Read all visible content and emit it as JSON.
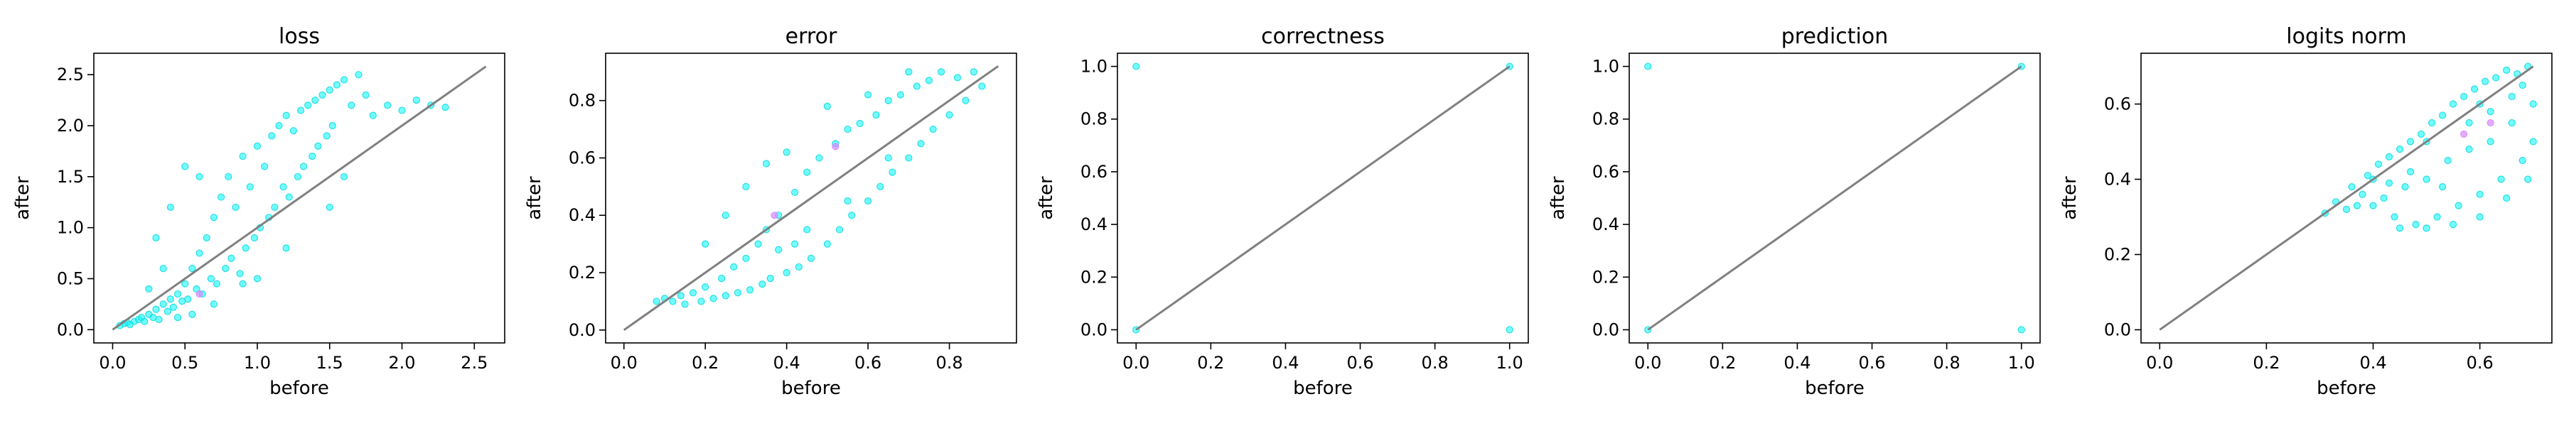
{
  "chart_data": [
    {
      "type": "scatter",
      "title": "loss",
      "xlabel": "before",
      "ylabel": "after",
      "xlim": [
        -0.13,
        2.71
      ],
      "ylim": [
        -0.13,
        2.71
      ],
      "xticks": [
        0.0,
        0.5,
        1.0,
        1.5,
        2.0,
        2.5
      ],
      "yticks": [
        0.0,
        0.5,
        1.0,
        1.5,
        2.0,
        2.5
      ],
      "xtick_labels": [
        "0.0",
        "0.5",
        "1.0",
        "1.5",
        "2.0",
        "2.5"
      ],
      "ytick_labels": [
        "0.0",
        "0.5",
        "1.0",
        "1.5",
        "2.0",
        "2.5"
      ],
      "reference_line": [
        [
          0.0,
          0.0
        ],
        [
          2.58,
          2.58
        ]
      ],
      "points": [
        [
          0.05,
          0.04
        ],
        [
          0.08,
          0.06
        ],
        [
          0.1,
          0.07
        ],
        [
          0.12,
          0.05
        ],
        [
          0.15,
          0.08
        ],
        [
          0.18,
          0.1
        ],
        [
          0.2,
          0.12
        ],
        [
          0.22,
          0.08
        ],
        [
          0.25,
          0.15
        ],
        [
          0.28,
          0.12
        ],
        [
          0.3,
          0.2
        ],
        [
          0.32,
          0.1
        ],
        [
          0.35,
          0.25
        ],
        [
          0.38,
          0.18
        ],
        [
          0.4,
          0.3
        ],
        [
          0.42,
          0.22
        ],
        [
          0.45,
          0.35
        ],
        [
          0.48,
          0.28
        ],
        [
          0.5,
          0.45
        ],
        [
          0.52,
          0.3
        ],
        [
          0.55,
          0.6
        ],
        [
          0.58,
          0.4
        ],
        [
          0.6,
          0.75
        ],
        [
          0.62,
          0.35
        ],
        [
          0.65,
          0.9
        ],
        [
          0.68,
          0.5
        ],
        [
          0.7,
          1.1
        ],
        [
          0.72,
          0.45
        ],
        [
          0.75,
          1.3
        ],
        [
          0.78,
          0.6
        ],
        [
          0.8,
          1.5
        ],
        [
          0.82,
          0.7
        ],
        [
          0.85,
          1.2
        ],
        [
          0.88,
          0.55
        ],
        [
          0.9,
          1.7
        ],
        [
          0.92,
          0.8
        ],
        [
          0.95,
          1.4
        ],
        [
          0.98,
          0.9
        ],
        [
          1.0,
          1.8
        ],
        [
          1.02,
          1.0
        ],
        [
          1.05,
          1.6
        ],
        [
          1.08,
          1.1
        ],
        [
          1.1,
          1.9
        ],
        [
          1.12,
          1.2
        ],
        [
          1.15,
          2.0
        ],
        [
          1.18,
          1.4
        ],
        [
          1.2,
          2.1
        ],
        [
          1.22,
          1.3
        ],
        [
          1.25,
          1.95
        ],
        [
          1.28,
          1.5
        ],
        [
          1.3,
          2.15
        ],
        [
          1.32,
          1.6
        ],
        [
          1.35,
          2.2
        ],
        [
          1.38,
          1.7
        ],
        [
          1.4,
          2.25
        ],
        [
          1.42,
          1.8
        ],
        [
          1.45,
          2.3
        ],
        [
          1.48,
          1.9
        ],
        [
          1.5,
          2.35
        ],
        [
          1.52,
          2.0
        ],
        [
          1.55,
          2.4
        ],
        [
          1.6,
          2.45
        ],
        [
          1.65,
          2.2
        ],
        [
          1.7,
          2.5
        ],
        [
          1.75,
          2.3
        ],
        [
          1.8,
          2.1
        ],
        [
          1.9,
          2.2
        ],
        [
          2.0,
          2.15
        ],
        [
          2.1,
          2.25
        ],
        [
          2.2,
          2.2
        ],
        [
          2.3,
          2.18
        ],
        [
          0.3,
          0.9
        ],
        [
          0.4,
          1.2
        ],
        [
          0.5,
          1.6
        ],
        [
          0.35,
          0.6
        ],
        [
          0.6,
          1.5
        ],
        [
          1.0,
          0.5
        ],
        [
          1.2,
          0.8
        ],
        [
          0.9,
          0.45
        ],
        [
          0.7,
          0.25
        ],
        [
          0.55,
          0.15
        ],
        [
          0.45,
          0.12
        ],
        [
          1.5,
          1.2
        ],
        [
          1.6,
          1.5
        ],
        [
          0.25,
          0.4
        ]
      ],
      "highlight_points": [
        [
          0.6,
          0.35
        ]
      ]
    },
    {
      "type": "scatter",
      "title": "error",
      "xlabel": "before",
      "ylabel": "after",
      "xlim": [
        -0.045,
        0.965
      ],
      "ylim": [
        -0.045,
        0.965
      ],
      "xticks": [
        0.0,
        0.2,
        0.4,
        0.6,
        0.8
      ],
      "yticks": [
        0.0,
        0.2,
        0.4,
        0.6,
        0.8
      ],
      "xtick_labels": [
        "0.0",
        "0.2",
        "0.4",
        "0.6",
        "0.8"
      ],
      "ytick_labels": [
        "0.0",
        "0.2",
        "0.4",
        "0.6",
        "0.8"
      ],
      "reference_line": [
        [
          0.0,
          0.0
        ],
        [
          0.92,
          0.92
        ]
      ],
      "points": [
        [
          0.08,
          0.1
        ],
        [
          0.1,
          0.11
        ],
        [
          0.12,
          0.1
        ],
        [
          0.14,
          0.12
        ],
        [
          0.15,
          0.09
        ],
        [
          0.17,
          0.13
        ],
        [
          0.19,
          0.1
        ],
        [
          0.2,
          0.15
        ],
        [
          0.22,
          0.11
        ],
        [
          0.24,
          0.18
        ],
        [
          0.25,
          0.12
        ],
        [
          0.27,
          0.22
        ],
        [
          0.28,
          0.13
        ],
        [
          0.3,
          0.25
        ],
        [
          0.31,
          0.14
        ],
        [
          0.33,
          0.3
        ],
        [
          0.34,
          0.16
        ],
        [
          0.35,
          0.35
        ],
        [
          0.36,
          0.18
        ],
        [
          0.38,
          0.4
        ],
        [
          0.4,
          0.2
        ],
        [
          0.42,
          0.48
        ],
        [
          0.43,
          0.22
        ],
        [
          0.45,
          0.55
        ],
        [
          0.46,
          0.25
        ],
        [
          0.48,
          0.6
        ],
        [
          0.5,
          0.3
        ],
        [
          0.52,
          0.65
        ],
        [
          0.53,
          0.35
        ],
        [
          0.55,
          0.7
        ],
        [
          0.56,
          0.4
        ],
        [
          0.58,
          0.72
        ],
        [
          0.6,
          0.45
        ],
        [
          0.62,
          0.75
        ],
        [
          0.63,
          0.5
        ],
        [
          0.65,
          0.8
        ],
        [
          0.66,
          0.55
        ],
        [
          0.68,
          0.82
        ],
        [
          0.7,
          0.6
        ],
        [
          0.72,
          0.85
        ],
        [
          0.73,
          0.65
        ],
        [
          0.75,
          0.87
        ],
        [
          0.76,
          0.7
        ],
        [
          0.78,
          0.9
        ],
        [
          0.8,
          0.75
        ],
        [
          0.82,
          0.88
        ],
        [
          0.84,
          0.8
        ],
        [
          0.86,
          0.9
        ],
        [
          0.88,
          0.85
        ],
        [
          0.3,
          0.5
        ],
        [
          0.35,
          0.58
        ],
        [
          0.4,
          0.62
        ],
        [
          0.25,
          0.4
        ],
        [
          0.45,
          0.35
        ],
        [
          0.55,
          0.45
        ],
        [
          0.65,
          0.6
        ],
        [
          0.2,
          0.3
        ],
        [
          0.6,
          0.82
        ],
        [
          0.5,
          0.78
        ],
        [
          0.7,
          0.9
        ],
        [
          0.38,
          0.28
        ],
        [
          0.42,
          0.3
        ]
      ],
      "highlight_points": [
        [
          0.37,
          0.4
        ],
        [
          0.52,
          0.64
        ]
      ]
    },
    {
      "type": "scatter",
      "title": "correctness",
      "xlabel": "before",
      "ylabel": "after",
      "xlim": [
        -0.05,
        1.05
      ],
      "ylim": [
        -0.05,
        1.05
      ],
      "xticks": [
        0.0,
        0.2,
        0.4,
        0.6,
        0.8,
        1.0
      ],
      "yticks": [
        0.0,
        0.2,
        0.4,
        0.6,
        0.8,
        1.0
      ],
      "xtick_labels": [
        "0.0",
        "0.2",
        "0.4",
        "0.6",
        "0.8",
        "1.0"
      ],
      "ytick_labels": [
        "0.0",
        "0.2",
        "0.4",
        "0.6",
        "0.8",
        "1.0"
      ],
      "reference_line": [
        [
          0.0,
          0.0
        ],
        [
          1.0,
          1.0
        ]
      ],
      "points": [
        [
          0.0,
          0.0
        ],
        [
          0.0,
          1.0
        ],
        [
          1.0,
          0.0
        ],
        [
          1.0,
          1.0
        ]
      ],
      "highlight_points": []
    },
    {
      "type": "scatter",
      "title": "prediction",
      "xlabel": "before",
      "ylabel": "after",
      "xlim": [
        -0.05,
        1.05
      ],
      "ylim": [
        -0.05,
        1.05
      ],
      "xticks": [
        0.0,
        0.2,
        0.4,
        0.6,
        0.8,
        1.0
      ],
      "yticks": [
        0.0,
        0.2,
        0.4,
        0.6,
        0.8,
        1.0
      ],
      "xtick_labels": [
        "0.0",
        "0.2",
        "0.4",
        "0.6",
        "0.8",
        "1.0"
      ],
      "ytick_labels": [
        "0.0",
        "0.2",
        "0.4",
        "0.6",
        "0.8",
        "1.0"
      ],
      "reference_line": [
        [
          0.0,
          0.0
        ],
        [
          1.0,
          1.0
        ]
      ],
      "points": [
        [
          0.0,
          0.0
        ],
        [
          0.0,
          1.0
        ],
        [
          1.0,
          0.0
        ],
        [
          1.0,
          1.0
        ]
      ],
      "highlight_points": []
    },
    {
      "type": "scatter",
      "title": "logits norm",
      "xlabel": "before",
      "ylabel": "after",
      "xlim": [
        -0.035,
        0.735
      ],
      "ylim": [
        -0.035,
        0.735
      ],
      "xticks": [
        0.0,
        0.2,
        0.4,
        0.6
      ],
      "yticks": [
        0.0,
        0.2,
        0.4,
        0.6
      ],
      "xtick_labels": [
        "0.0",
        "0.2",
        "0.4",
        "0.6"
      ],
      "ytick_labels": [
        "0.0",
        "0.2",
        "0.4",
        "0.6"
      ],
      "reference_line": [
        [
          0.0,
          0.0
        ],
        [
          0.7,
          0.7
        ]
      ],
      "points": [
        [
          0.31,
          0.31
        ],
        [
          0.33,
          0.34
        ],
        [
          0.35,
          0.32
        ],
        [
          0.36,
          0.38
        ],
        [
          0.38,
          0.36
        ],
        [
          0.39,
          0.41
        ],
        [
          0.4,
          0.33
        ],
        [
          0.41,
          0.44
        ],
        [
          0.42,
          0.35
        ],
        [
          0.43,
          0.46
        ],
        [
          0.44,
          0.3
        ],
        [
          0.45,
          0.48
        ],
        [
          0.46,
          0.38
        ],
        [
          0.47,
          0.5
        ],
        [
          0.48,
          0.28
        ],
        [
          0.49,
          0.52
        ],
        [
          0.5,
          0.4
        ],
        [
          0.51,
          0.55
        ],
        [
          0.52,
          0.3
        ],
        [
          0.53,
          0.57
        ],
        [
          0.54,
          0.45
        ],
        [
          0.55,
          0.6
        ],
        [
          0.56,
          0.33
        ],
        [
          0.57,
          0.62
        ],
        [
          0.58,
          0.48
        ],
        [
          0.59,
          0.64
        ],
        [
          0.6,
          0.36
        ],
        [
          0.61,
          0.66
        ],
        [
          0.62,
          0.5
        ],
        [
          0.63,
          0.67
        ],
        [
          0.64,
          0.4
        ],
        [
          0.65,
          0.69
        ],
        [
          0.66,
          0.55
        ],
        [
          0.67,
          0.68
        ],
        [
          0.68,
          0.45
        ],
        [
          0.69,
          0.7
        ],
        [
          0.7,
          0.6
        ],
        [
          0.7,
          0.5
        ],
        [
          0.69,
          0.4
        ],
        [
          0.68,
          0.65
        ],
        [
          0.45,
          0.27
        ],
        [
          0.5,
          0.27
        ],
        [
          0.55,
          0.28
        ],
        [
          0.6,
          0.3
        ],
        [
          0.65,
          0.35
        ],
        [
          0.4,
          0.4
        ],
        [
          0.5,
          0.5
        ],
        [
          0.6,
          0.6
        ],
        [
          0.47,
          0.42
        ],
        [
          0.53,
          0.38
        ],
        [
          0.58,
          0.55
        ],
        [
          0.62,
          0.58
        ],
        [
          0.66,
          0.62
        ],
        [
          0.37,
          0.33
        ],
        [
          0.43,
          0.39
        ]
      ],
      "highlight_points": [
        [
          0.57,
          0.52
        ],
        [
          0.62,
          0.55
        ]
      ]
    }
  ],
  "colors": {
    "point_fill": "#00ffff",
    "point_edge": "#18d8e0",
    "highlight_point": "#d887ff",
    "reference_line": "#808080",
    "axes": "#000000"
  }
}
